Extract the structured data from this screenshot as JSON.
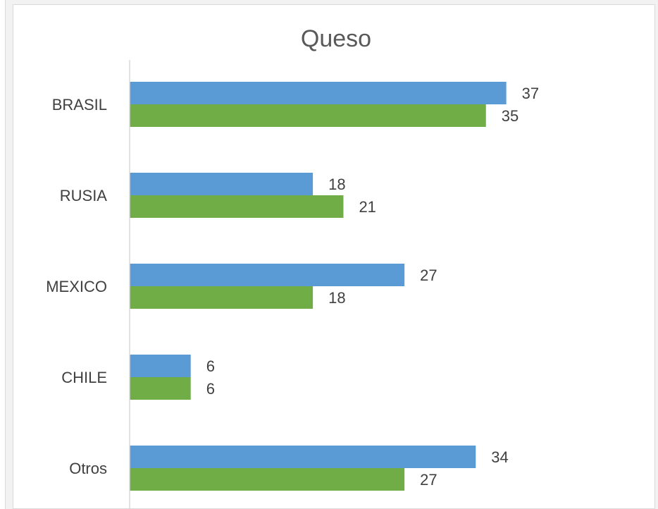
{
  "chart_data": {
    "type": "bar",
    "orientation": "horizontal",
    "title": "Queso",
    "categories": [
      "BRASIL",
      "RUSIA",
      "MEXICO",
      "CHILE",
      "Otros"
    ],
    "series": [
      {
        "values": [
          37,
          18,
          27,
          6,
          34
        ],
        "color": "#5b9bd5"
      },
      {
        "values": [
          35,
          21,
          18,
          6,
          27
        ],
        "color": "#70ad47"
      }
    ],
    "xlim": [
      0,
      42
    ],
    "grid": false,
    "legend": "none",
    "data_labels": true
  }
}
